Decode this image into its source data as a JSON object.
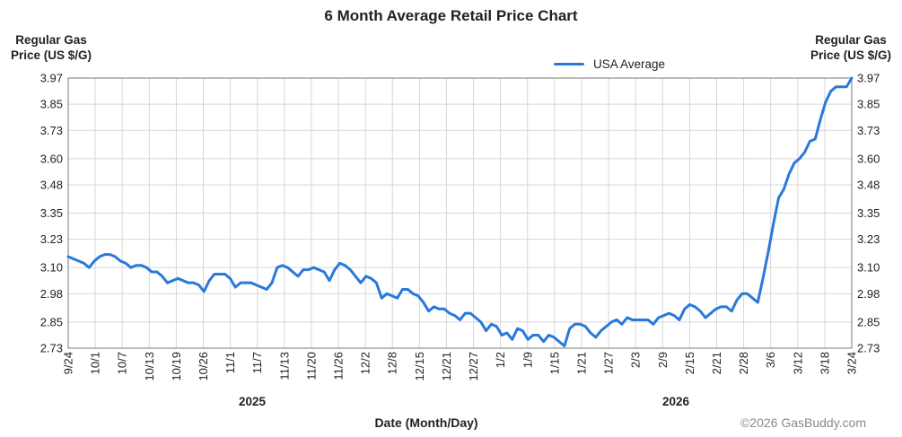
{
  "chart_data": {
    "type": "line",
    "title": "6 Month Average Retail Price Chart",
    "ylabel_left": "Regular Gas Price (US $/G)",
    "ylabel_right": "Regular Gas Price (US $/G)",
    "xlabel": "Date (Month/Day)",
    "ylim": [
      2.73,
      3.97
    ],
    "yticks": [
      "3.97",
      "3.85",
      "3.73",
      "3.60",
      "3.48",
      "3.35",
      "3.23",
      "3.10",
      "2.98",
      "2.85",
      "2.73"
    ],
    "xticks": [
      "9/24",
      "10/1",
      "10/7",
      "10/13",
      "10/19",
      "10/26",
      "11/1",
      "11/7",
      "11/13",
      "11/20",
      "11/26",
      "12/2",
      "12/8",
      "12/15",
      "12/21",
      "12/27",
      "1/2",
      "1/9",
      "1/15",
      "1/21",
      "1/27",
      "2/3",
      "2/9",
      "2/15",
      "2/21",
      "2/28",
      "3/6",
      "3/12",
      "3/18",
      "3/24"
    ],
    "years": [
      "2025",
      "2026"
    ],
    "legend": "USA Average",
    "grid": true,
    "series": [
      {
        "name": "USA Average",
        "color": "#2979db",
        "values": [
          3.15,
          3.14,
          3.13,
          3.12,
          3.1,
          3.13,
          3.15,
          3.16,
          3.16,
          3.15,
          3.13,
          3.12,
          3.1,
          3.11,
          3.11,
          3.1,
          3.08,
          3.08,
          3.06,
          3.03,
          3.04,
          3.05,
          3.04,
          3.03,
          3.03,
          3.02,
          2.99,
          3.04,
          3.07,
          3.07,
          3.07,
          3.05,
          3.01,
          3.03,
          3.03,
          3.03,
          3.02,
          3.01,
          3.0,
          3.03,
          3.1,
          3.11,
          3.1,
          3.08,
          3.06,
          3.09,
          3.09,
          3.1,
          3.09,
          3.08,
          3.04,
          3.09,
          3.12,
          3.11,
          3.09,
          3.06,
          3.03,
          3.06,
          3.05,
          3.03,
          2.96,
          2.98,
          2.97,
          2.96,
          3.0,
          3.0,
          2.98,
          2.97,
          2.94,
          2.9,
          2.92,
          2.91,
          2.91,
          2.89,
          2.88,
          2.86,
          2.89,
          2.89,
          2.87,
          2.85,
          2.81,
          2.84,
          2.83,
          2.79,
          2.8,
          2.77,
          2.82,
          2.81,
          2.77,
          2.79,
          2.79,
          2.76,
          2.79,
          2.78,
          2.76,
          2.74,
          2.82,
          2.84,
          2.84,
          2.83,
          2.8,
          2.78,
          2.81,
          2.83,
          2.85,
          2.86,
          2.84,
          2.87,
          2.86,
          2.86,
          2.86,
          2.86,
          2.84,
          2.87,
          2.88,
          2.89,
          2.88,
          2.86,
          2.91,
          2.93,
          2.92,
          2.9,
          2.87,
          2.89,
          2.91,
          2.92,
          2.92,
          2.9,
          2.95,
          2.98,
          2.98,
          2.96,
          2.94,
          3.05,
          3.17,
          3.3,
          3.42,
          3.46,
          3.53,
          3.58,
          3.6,
          3.63,
          3.68,
          3.69,
          3.78,
          3.86,
          3.91,
          3.93,
          3.93,
          3.93,
          3.97
        ]
      }
    ]
  },
  "copyright": "©2026 GasBuddy.com"
}
